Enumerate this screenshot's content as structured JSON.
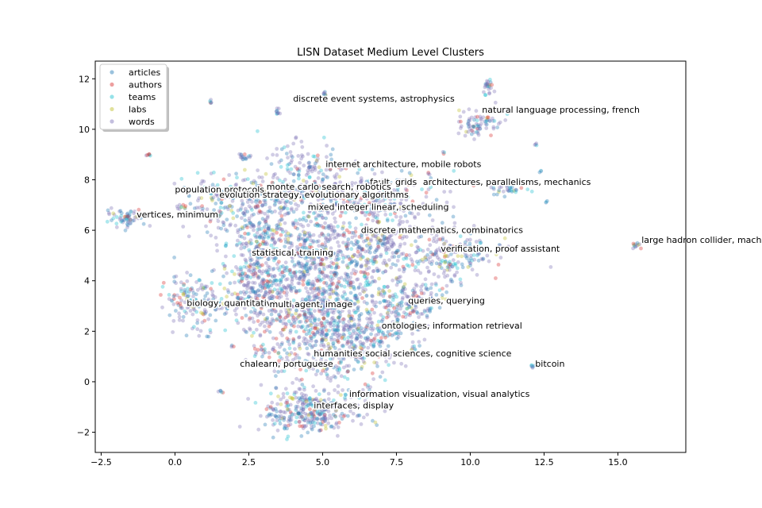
{
  "chart_data": {
    "type": "scatter",
    "title": "LISN Dataset Medium Level Clusters",
    "xlabel": "",
    "ylabel": "",
    "xlim": [
      -2.7,
      17.3
    ],
    "ylim": [
      -2.8,
      12.7
    ],
    "xticks": [
      -2.5,
      0.0,
      2.5,
      5.0,
      7.5,
      10.0,
      12.5,
      15.0
    ],
    "xtick_labels": [
      "−2.5",
      "0.0",
      "2.5",
      "5.0",
      "7.5",
      "10.0",
      "12.5",
      "15.0"
    ],
    "yticks": [
      -2,
      0,
      2,
      4,
      6,
      8,
      10,
      12
    ],
    "ytick_labels": [
      "−2",
      "0",
      "2",
      "4",
      "6",
      "8",
      "10",
      "12"
    ],
    "grid": false,
    "legend_position": "top-left",
    "series": [
      {
        "name": "articles",
        "color": "#1f77b4"
      },
      {
        "name": "authors",
        "color": "#d62728"
      },
      {
        "name": "teams",
        "color": "#17becf"
      },
      {
        "name": "labs",
        "color": "#bcbd22"
      },
      {
        "name": "words",
        "color": "#7b6fb5"
      }
    ],
    "clusters": [
      {
        "label": "discrete event systems, astrophysics",
        "x": 4.0,
        "y": 11.1
      },
      {
        "label": "natural language processing, french",
        "x": 10.4,
        "y": 10.65
      },
      {
        "label": "internet architecture, mobile robots",
        "x": 5.1,
        "y": 8.5
      },
      {
        "label": "fault, grids",
        "x": 6.6,
        "y": 7.8
      },
      {
        "label": "architectures, parallelisms, mechanics",
        "x": 8.4,
        "y": 7.8
      },
      {
        "label": "population protocols",
        "x": 0.0,
        "y": 7.5
      },
      {
        "label": "monte carlo search, robotics",
        "x": 3.1,
        "y": 7.6
      },
      {
        "label": "evolution strategy, evolutionary algorithms",
        "x": 1.5,
        "y": 7.3
      },
      {
        "label": "mixed integer linear, scheduling",
        "x": 4.5,
        "y": 6.8
      },
      {
        "label": "vertices, minimum",
        "x": -1.3,
        "y": 6.5
      },
      {
        "label": "discrete mathematics, combinatorics",
        "x": 6.3,
        "y": 5.9
      },
      {
        "label": "large hadron collider, machine",
        "x": 15.8,
        "y": 5.5
      },
      {
        "label": "verification, proof assistant",
        "x": 9.0,
        "y": 5.15
      },
      {
        "label": "statistical, training",
        "x": 2.6,
        "y": 5.0
      },
      {
        "label": "biology, quantitative",
        "x": 0.4,
        "y": 3.0
      },
      {
        "label": "multi agent, image",
        "x": 3.2,
        "y": 2.95
      },
      {
        "label": "queries, querying",
        "x": 7.9,
        "y": 3.1
      },
      {
        "label": "ontologies, information retrieval",
        "x": 7.0,
        "y": 2.1
      },
      {
        "label": "humanities social sciences, cognitive science",
        "x": 4.7,
        "y": 1.0
      },
      {
        "label": "bitcoin",
        "x": 12.2,
        "y": 0.6
      },
      {
        "label": "chalearn, portuguese",
        "x": 2.2,
        "y": 0.6
      },
      {
        "label": "information visualization, visual analytics",
        "x": 5.9,
        "y": -0.6
      },
      {
        "label": "interfaces, display",
        "x": 4.7,
        "y": -1.05
      }
    ],
    "point_groups": [
      {
        "cx": 4.8,
        "cy": 4.3,
        "sx": 1.3,
        "sy": 1.6,
        "n": 900
      },
      {
        "cx": 5.0,
        "cy": 2.3,
        "sx": 0.8,
        "sy": 0.8,
        "n": 300
      },
      {
        "cx": 4.6,
        "cy": -1.2,
        "sx": 0.8,
        "sy": 0.5,
        "n": 320
      },
      {
        "cx": 5.6,
        "cy": 0.9,
        "sx": 0.9,
        "sy": 0.5,
        "n": 120
      },
      {
        "cx": 3.0,
        "cy": 5.5,
        "sx": 0.7,
        "sy": 0.7,
        "n": 180
      },
      {
        "cx": 2.0,
        "cy": 7.1,
        "sx": 0.9,
        "sy": 0.5,
        "n": 180
      },
      {
        "cx": 4.8,
        "cy": 7.4,
        "sx": 1.3,
        "sy": 0.6,
        "n": 240
      },
      {
        "cx": 4.3,
        "cy": 8.6,
        "sx": 0.6,
        "sy": 0.4,
        "n": 80
      },
      {
        "cx": 7.4,
        "cy": 7.4,
        "sx": 0.9,
        "sy": 0.5,
        "n": 140
      },
      {
        "cx": 9.3,
        "cy": 5.0,
        "sx": 0.8,
        "sy": 0.5,
        "n": 200
      },
      {
        "cx": 6.8,
        "cy": 5.2,
        "sx": 0.7,
        "sy": 0.6,
        "n": 160
      },
      {
        "cx": 7.9,
        "cy": 3.2,
        "sx": 0.6,
        "sy": 0.5,
        "n": 160
      },
      {
        "cx": 6.7,
        "cy": 2.0,
        "sx": 0.6,
        "sy": 0.4,
        "n": 120
      },
      {
        "cx": 0.6,
        "cy": 3.1,
        "sx": 0.5,
        "sy": 0.6,
        "n": 140
      },
      {
        "cx": 2.8,
        "cy": 3.0,
        "sx": 0.6,
        "sy": 0.5,
        "n": 120
      },
      {
        "cx": 2.7,
        "cy": 4.0,
        "sx": 0.6,
        "sy": 0.5,
        "n": 120
      },
      {
        "cx": -1.7,
        "cy": 6.5,
        "sx": 0.3,
        "sy": 0.15,
        "n": 60
      },
      {
        "cx": 10.3,
        "cy": 10.3,
        "sx": 0.4,
        "sy": 0.3,
        "n": 80
      },
      {
        "cx": 10.6,
        "cy": 11.7,
        "sx": 0.1,
        "sy": 0.2,
        "n": 25
      },
      {
        "cx": 11.2,
        "cy": 7.6,
        "sx": 0.3,
        "sy": 0.1,
        "n": 30
      },
      {
        "cx": 15.6,
        "cy": 5.4,
        "sx": 0.1,
        "sy": 0.05,
        "n": 12
      },
      {
        "cx": 12.1,
        "cy": 0.6,
        "sx": 0.05,
        "sy": 0.05,
        "n": 6
      },
      {
        "cx": 3.5,
        "cy": 10.7,
        "sx": 0.05,
        "sy": 0.1,
        "n": 10
      },
      {
        "cx": 5.1,
        "cy": 11.4,
        "sx": 0.05,
        "sy": 0.05,
        "n": 8
      },
      {
        "cx": 1.2,
        "cy": 11.1,
        "sx": 0.03,
        "sy": 0.03,
        "n": 5
      },
      {
        "cx": -0.9,
        "cy": 9.0,
        "sx": 0.05,
        "sy": 0.03,
        "n": 6
      },
      {
        "cx": 12.2,
        "cy": 9.4,
        "sx": 0.03,
        "sy": 0.03,
        "n": 4
      },
      {
        "cx": 12.4,
        "cy": 8.3,
        "sx": 0.03,
        "sy": 0.03,
        "n": 3
      },
      {
        "cx": 12.6,
        "cy": 7.1,
        "sx": 0.03,
        "sy": 0.03,
        "n": 3
      },
      {
        "cx": 9.1,
        "cy": 9.1,
        "sx": 0.03,
        "sy": 0.03,
        "n": 3
      },
      {
        "cx": 2.3,
        "cy": 8.9,
        "sx": 0.1,
        "sy": 0.1,
        "n": 15
      },
      {
        "cx": 1.9,
        "cy": 1.4,
        "sx": 0.03,
        "sy": 0.03,
        "n": 3
      },
      {
        "cx": 1.5,
        "cy": -0.4,
        "sx": 0.05,
        "sy": 0.05,
        "n": 5
      },
      {
        "cx": 8.1,
        "cy": 1.4,
        "sx": 0.1,
        "sy": 0.1,
        "n": 8
      },
      {
        "cx": 0.2,
        "cy": 6.9,
        "sx": 0.1,
        "sy": 0.05,
        "n": 8
      },
      {
        "cx": 3.2,
        "cy": 1.1,
        "sx": 0.3,
        "sy": 0.2,
        "n": 30
      }
    ]
  }
}
